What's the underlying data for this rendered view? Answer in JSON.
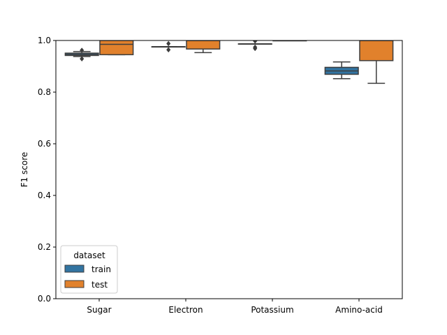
{
  "chart_data": {
    "type": "box",
    "title": "",
    "xlabel": "",
    "ylabel": "F1 score",
    "ylim": [
      0.0,
      1.0
    ],
    "yticks": [
      {
        "value": 0.0,
        "label": "0.0"
      },
      {
        "value": 0.2,
        "label": "0.2"
      },
      {
        "value": 0.4,
        "label": "0.4"
      },
      {
        "value": 0.6,
        "label": "0.6"
      },
      {
        "value": 0.8,
        "label": "0.8"
      },
      {
        "value": 1.0,
        "label": "1.0"
      }
    ],
    "categories": [
      "Sugar",
      "Electron",
      "Potassium",
      "Amino-acid"
    ],
    "grid": false,
    "legend": {
      "title": "dataset",
      "position": "lower-left",
      "entries": [
        "train",
        "test"
      ]
    },
    "series": [
      {
        "name": "train",
        "color": "#3274a1",
        "boxes": [
          {
            "whisker_low": 0.938,
            "q1": 0.942,
            "median": 0.946,
            "q3": 0.951,
            "whisker_high": 0.957,
            "outliers": [
              0.962,
              0.929
            ]
          },
          {
            "whisker_low": 0.976,
            "q1": 0.976,
            "median": 0.976,
            "q3": 0.976,
            "whisker_high": 0.976,
            "outliers": [
              0.988,
              0.964
            ]
          },
          {
            "whisker_low": 0.987,
            "q1": 0.987,
            "median": 0.987,
            "q3": 0.987,
            "whisker_high": 0.987,
            "outliers": [
              0.998,
              0.974,
              0.969
            ]
          },
          {
            "whisker_low": 0.852,
            "q1": 0.869,
            "median": 0.882,
            "q3": 0.896,
            "whisker_high": 0.917,
            "outliers": []
          }
        ]
      },
      {
        "name": "test",
        "color": "#e1812c",
        "boxes": [
          {
            "whisker_low": 0.945,
            "q1": 0.945,
            "median": 0.985,
            "q3": 1.0,
            "whisker_high": 1.0,
            "outliers": []
          },
          {
            "whisker_low": 0.953,
            "q1": 0.967,
            "median": 1.0,
            "q3": 1.0,
            "whisker_high": 1.0,
            "outliers": []
          },
          {
            "whisker_low": 1.0,
            "q1": 1.0,
            "median": 1.0,
            "q3": 1.0,
            "whisker_high": 1.0,
            "outliers": []
          },
          {
            "whisker_low": 0.834,
            "q1": 0.922,
            "median": 1.0,
            "q3": 1.0,
            "whisker_high": 1.0,
            "outliers": []
          }
        ]
      }
    ]
  }
}
